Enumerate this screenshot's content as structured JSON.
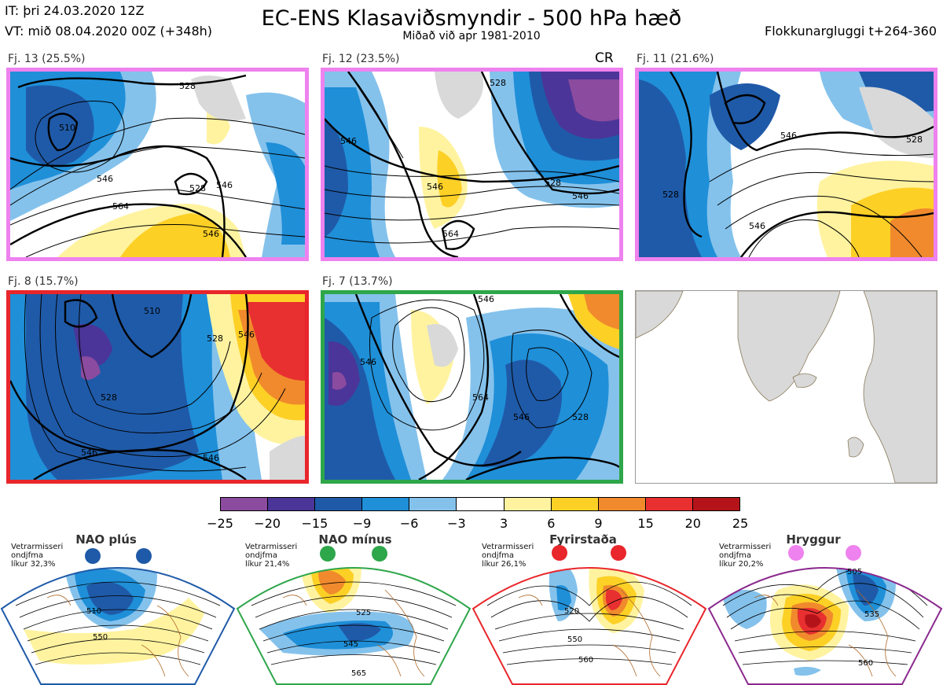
{
  "header": {
    "issue_time": "IT: þri 24.03.2020 12Z",
    "valid_time": "VT: mið 08.04.2020 00Z  (+348h)",
    "title": "EC-ENS Klasaviðsmyndir - 500 hPa hæð",
    "subtitle": "Miðað við apr 1981-2010",
    "window": "Flokkunargluggi t+264-360"
  },
  "panels": [
    {
      "label": "Fj. 13 (25.5%)",
      "border": "#ee82ee",
      "contours": [
        "510",
        "528",
        "546",
        "546",
        "528",
        "564",
        "546"
      ]
    },
    {
      "label": "Fj. 12 (23.5%)",
      "border": "#ee82ee",
      "tag": "CR",
      "contours": [
        "546",
        "528",
        "546",
        "528",
        "546",
        "564"
      ]
    },
    {
      "label": "Fj. 11 (21.6%)",
      "border": "#ee82ee",
      "contours": [
        "528",
        "546",
        "528",
        "546"
      ]
    },
    {
      "label": "Fj. 8 (15.7%)",
      "border": "#e8262b",
      "contours": [
        "510",
        "528",
        "546",
        "528",
        "546",
        "546"
      ]
    },
    {
      "label": "Fj. 7 (13.7%)",
      "border": "#2ea64a",
      "contours": [
        "546",
        "564",
        "546",
        "528",
        "546"
      ]
    }
  ],
  "colorbar": {
    "ticks": [
      "−25",
      "−20",
      "−15",
      "−9",
      "−6",
      "−3",
      "3",
      "6",
      "9",
      "15",
      "20",
      "25"
    ],
    "colors": [
      "#8b4b9e",
      "#4b3598",
      "#1f5aa8",
      "#1f8fd8",
      "#84c2ec",
      "#ffffff",
      "#fff3a0",
      "#fdd026",
      "#f08a2c",
      "#e83030",
      "#b4131a"
    ]
  },
  "regimes": [
    {
      "name": "NAO plús",
      "note": [
        "Vetrarmisseri",
        "ondjfma",
        "líkur 32,3%"
      ],
      "dot_color": "#1f5aa8",
      "border": "#1f5aa8",
      "contours": [
        "510",
        "550"
      ]
    },
    {
      "name": "NAO mínus",
      "note": [
        "Vetrarmisseri",
        "ondjfma",
        "líkur 21,4%"
      ],
      "dot_color": "#2ea64a",
      "border": "#2ea64a",
      "contours": [
        "525",
        "545",
        "565"
      ]
    },
    {
      "name": "Fyrirstaða",
      "note": [
        "Vetrarmisseri",
        "ondjfma",
        "líkur 26,1%"
      ],
      "dot_color": "#e8262b",
      "border": "#e8262b",
      "contours": [
        "520",
        "550",
        "560"
      ]
    },
    {
      "name": "Hryggur",
      "note": [
        "Vetrarmisseri",
        "ondjfma",
        "líkur 20,2%"
      ],
      "dot_color": "#ee82ee",
      "border": "#8b2a8e",
      "contours": [
        "505",
        "535",
        "560"
      ]
    }
  ]
}
